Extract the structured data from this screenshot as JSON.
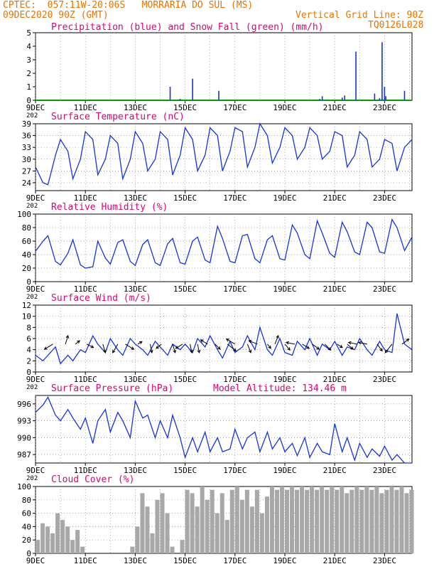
{
  "header": {
    "line1_left": "CPTEC:  057:11W-20:06S   MORRARIA DO SUL (MS)",
    "line2_left": "09DEC2020 90Z (GMT)",
    "line2_right": "Vertical Grid Line: 90Z",
    "line3_right": "TQ0126L028"
  },
  "colors": {
    "header": "#e87400",
    "title": "#e0007a",
    "series": "#1432e6",
    "snow": "#00a000",
    "cloud": "#a8a8a8",
    "arrow": "#000000"
  },
  "x_axis": {
    "tick_labels": [
      "9DEC",
      "11DEC",
      "13DEC",
      "15DEC",
      "17DEC",
      "19DEC",
      "21DEC",
      "23DEC"
    ],
    "label_days": [
      9,
      11,
      13,
      15,
      17,
      19,
      21,
      23
    ],
    "range_days": [
      9,
      24.1
    ],
    "year_fragment": "202"
  },
  "chart_data": [
    {
      "type": "bar",
      "title": "Precipitation (blue) and Snow Fall (green) (mm/h)",
      "ylim": [
        0,
        5
      ],
      "yticks": [
        "0",
        "1",
        "2",
        "3",
        "4",
        "5"
      ],
      "series": [
        {
          "name": "Precipitation",
          "x_days": [
            14.4,
            14.8,
            15.3,
            16.35,
            20.4,
            20.5,
            21.3,
            21.4,
            21.85,
            22.6,
            22.8,
            22.9,
            23.0,
            23.05,
            23.8
          ],
          "values": [
            1.0,
            0.1,
            1.6,
            0.7,
            0.1,
            0.3,
            0.2,
            0.35,
            3.6,
            0.5,
            0.15,
            4.3,
            1.0,
            0.3,
            0.7
          ]
        },
        {
          "name": "Snow Fall",
          "x_days": [
            9,
            24.1
          ],
          "values": [
            0,
            0
          ]
        }
      ]
    },
    {
      "type": "line",
      "title": "Surface Temperature (nC)",
      "ylim": [
        22,
        39
      ],
      "yticks": [
        "24",
        "27",
        "30",
        "33",
        "36",
        "39"
      ],
      "ytick_values": [
        24,
        27,
        30,
        33,
        36,
        39
      ],
      "x_days": [
        9.0,
        9.3,
        9.5,
        9.8,
        10.0,
        10.3,
        10.5,
        10.8,
        11.0,
        11.3,
        11.5,
        11.8,
        12.0,
        12.3,
        12.5,
        12.8,
        13.0,
        13.3,
        13.5,
        13.8,
        14.0,
        14.3,
        14.5,
        14.8,
        15.0,
        15.3,
        15.5,
        15.8,
        16.0,
        16.3,
        16.5,
        16.8,
        17.0,
        17.3,
        17.5,
        17.8,
        18.0,
        18.3,
        18.5,
        18.8,
        19.0,
        19.3,
        19.5,
        19.8,
        20.0,
        20.3,
        20.5,
        20.8,
        21.0,
        21.3,
        21.5,
        21.8,
        22.0,
        22.3,
        22.5,
        22.8,
        23.0,
        23.3,
        23.5,
        23.8,
        24.1
      ],
      "values": [
        28,
        24,
        23.5,
        31,
        35,
        32,
        25,
        30,
        37,
        35,
        26,
        30,
        36,
        34,
        25,
        30,
        37,
        34,
        27,
        30,
        37,
        35,
        26,
        31,
        38,
        35,
        27,
        31,
        38,
        36,
        27,
        32,
        38,
        37,
        28,
        33,
        39,
        36,
        29,
        33,
        38,
        36,
        30,
        33,
        38,
        36,
        30,
        32,
        37,
        36,
        28,
        31,
        37,
        35,
        28,
        30,
        35,
        34,
        27,
        33,
        35
      ],
      "grid": true
    },
    {
      "type": "line",
      "title": "Relative Humidity (%)",
      "ylim": [
        0,
        100
      ],
      "yticks": [
        "0",
        "20",
        "40",
        "60",
        "80",
        "100"
      ],
      "ytick_values": [
        0,
        20,
        40,
        60,
        80,
        100
      ],
      "x_days": [
        9.0,
        9.3,
        9.5,
        9.8,
        10.0,
        10.3,
        10.5,
        10.8,
        11.0,
        11.3,
        11.5,
        11.8,
        12.0,
        12.3,
        12.5,
        12.8,
        13.0,
        13.3,
        13.5,
        13.8,
        14.0,
        14.3,
        14.5,
        14.8,
        15.0,
        15.3,
        15.5,
        15.8,
        16.0,
        16.3,
        16.5,
        16.8,
        17.0,
        17.3,
        17.5,
        17.8,
        18.0,
        18.3,
        18.5,
        18.8,
        19.0,
        19.3,
        19.5,
        19.8,
        20.0,
        20.3,
        20.5,
        20.8,
        21.0,
        21.3,
        21.5,
        21.8,
        22.0,
        22.3,
        22.5,
        22.8,
        23.0,
        23.3,
        23.5,
        23.8,
        24.1
      ],
      "values": [
        45,
        60,
        68,
        30,
        25,
        42,
        62,
        25,
        20,
        22,
        60,
        35,
        26,
        58,
        62,
        30,
        24,
        55,
        62,
        28,
        24,
        56,
        64,
        28,
        26,
        60,
        66,
        32,
        28,
        82,
        64,
        30,
        28,
        68,
        70,
        34,
        28,
        62,
        68,
        34,
        32,
        84,
        72,
        40,
        34,
        90,
        72,
        42,
        36,
        88,
        74,
        44,
        40,
        88,
        80,
        44,
        42,
        92,
        80,
        46,
        66
      ],
      "grid": true
    },
    {
      "type": "line",
      "title": "Surface Wind (m/s)",
      "ylim": [
        0,
        12
      ],
      "yticks": [
        "0",
        "2",
        "4",
        "6",
        "8",
        "10",
        "12"
      ],
      "ytick_values": [
        0,
        2,
        4,
        6,
        8,
        10,
        12
      ],
      "x_days": [
        9.0,
        9.3,
        9.5,
        9.8,
        10.0,
        10.3,
        10.5,
        10.8,
        11.0,
        11.3,
        11.5,
        11.8,
        12.0,
        12.3,
        12.5,
        12.8,
        13.0,
        13.3,
        13.5,
        13.8,
        14.0,
        14.3,
        14.5,
        14.8,
        15.0,
        15.3,
        15.5,
        15.8,
        16.0,
        16.3,
        16.5,
        16.8,
        17.0,
        17.3,
        17.5,
        17.8,
        18.0,
        18.3,
        18.5,
        18.8,
        19.0,
        19.3,
        19.5,
        19.8,
        20.0,
        20.3,
        20.5,
        20.8,
        21.0,
        21.3,
        21.5,
        21.8,
        22.0,
        22.3,
        22.5,
        22.8,
        23.0,
        23.3,
        23.5,
        23.8,
        24.1
      ],
      "values": [
        3,
        2,
        3,
        4.5,
        1.5,
        3,
        2,
        4,
        3.5,
        6.5,
        5,
        3.5,
        6,
        4,
        3,
        6,
        5,
        4,
        3,
        5.5,
        4.5,
        3,
        5,
        4,
        5,
        3.5,
        6,
        4.5,
        6.5,
        4,
        2.5,
        5.5,
        3.5,
        4.5,
        6.5,
        4,
        8,
        4,
        3,
        6,
        3.5,
        3,
        5.5,
        4,
        6,
        3,
        5,
        4,
        5.5,
        3,
        4.5,
        4,
        6,
        4,
        3,
        5.5,
        4,
        3.5,
        10.5,
        5,
        4
      ],
      "grid": true,
      "arrows": {
        "x_days": [
          9.7,
          10.2,
          10.6,
          11.05,
          11.7,
          12.3,
          12.6,
          13.1,
          13.6,
          14.05,
          14.5,
          14.9,
          15.2,
          15.5,
          15.9,
          16.2,
          16.7,
          17.0,
          17.5,
          17.9,
          18.3,
          18.6,
          19.0,
          19.4,
          19.7,
          20.1,
          20.6,
          21.1,
          21.5,
          21.9,
          22.3,
          22.7,
          23.3,
          23.7
        ],
        "dx": [
          -1,
          0.3,
          0.5,
          0.8,
          0.3,
          -0.6,
          1,
          0.5,
          0.2,
          -0.6,
          0.3,
          -0.8,
          0.2,
          0.2,
          -0.8,
          0.6,
          1,
          -1,
          0.4,
          -1,
          0.4,
          0.4,
          0.6,
          -1,
          0.8,
          0.8,
          0.7,
          0.6,
          0.7,
          -1,
          -1,
          0.6,
          -0.8,
          0.8
        ],
        "dy": [
          -0.6,
          1,
          0.4,
          -0.4,
          -1,
          -1,
          -0.6,
          0.3,
          -1,
          -0.5,
          -1,
          -0.5,
          -1,
          -1,
          0.5,
          -0.6,
          -0.8,
          0.6,
          -1,
          0.4,
          -0.5,
          1,
          -0.7,
          0.2,
          -0.5,
          -0.6,
          -0.7,
          -0.4,
          -0.6,
          0.2,
          0.2,
          -0.8,
          -1,
          0.6
        ]
      }
    },
    {
      "type": "line",
      "title": "Surface Pressure (hPa)",
      "annotation": "Model Altitude: 134.46 m",
      "ylim": [
        985.5,
        997.5
      ],
      "yticks": [
        "987",
        "990",
        "993",
        "996"
      ],
      "ytick_values": [
        987,
        990,
        993,
        996
      ],
      "x_days": [
        9.0,
        9.3,
        9.5,
        9.8,
        10.0,
        10.3,
        10.5,
        10.8,
        11.0,
        11.3,
        11.5,
        11.8,
        12.0,
        12.3,
        12.5,
        12.8,
        13.0,
        13.3,
        13.5,
        13.8,
        14.0,
        14.3,
        14.5,
        14.8,
        15.0,
        15.3,
        15.5,
        15.8,
        16.0,
        16.3,
        16.5,
        16.8,
        17.0,
        17.3,
        17.5,
        17.8,
        18.0,
        18.3,
        18.5,
        18.8,
        19.0,
        19.3,
        19.5,
        19.8,
        20.0,
        20.3,
        20.5,
        20.8,
        21.0,
        21.3,
        21.5,
        21.8,
        22.0,
        22.3,
        22.5,
        22.8,
        23.0,
        23.3,
        23.5,
        23.8,
        24.1
      ],
      "values": [
        994.5,
        995.8,
        997.2,
        994,
        993,
        995,
        993.5,
        991.5,
        993.5,
        989,
        993,
        995,
        991,
        994.5,
        993,
        990,
        996.5,
        993.5,
        994,
        990,
        993,
        990,
        994,
        990,
        986.5,
        990,
        987.5,
        991,
        987.5,
        990,
        987.5,
        988,
        991.5,
        988,
        990,
        991,
        987.5,
        991,
        988,
        990,
        987.5,
        989,
        986.8,
        990,
        986.5,
        989,
        987.5,
        987,
        992.5,
        987.5,
        990,
        986,
        989,
        986.5,
        988,
        986.7,
        988.5,
        986,
        987,
        985.5,
        985.5
      ],
      "grid": true
    },
    {
      "type": "bar",
      "title": "Cloud Cover (%)",
      "ylim": [
        0,
        100
      ],
      "yticks": [
        "0",
        "20",
        "40",
        "60",
        "80",
        "100"
      ],
      "ytick_values": [
        0,
        20,
        40,
        60,
        80,
        100
      ],
      "x_days": [
        9.0,
        9.2,
        9.4,
        9.6,
        9.8,
        10.0,
        10.2,
        10.4,
        10.6,
        10.8,
        11.0,
        11.2,
        11.4,
        11.6,
        11.8,
        12.0,
        12.2,
        12.4,
        12.6,
        12.8,
        13.0,
        13.2,
        13.4,
        13.6,
        13.8,
        14.0,
        14.2,
        14.4,
        14.6,
        14.8,
        15.0,
        15.2,
        15.4,
        15.6,
        15.8,
        16.0,
        16.2,
        16.4,
        16.6,
        16.8,
        17.0,
        17.2,
        17.4,
        17.6,
        17.8,
        18.0,
        18.2,
        18.4,
        18.6,
        18.8,
        19.0,
        19.2,
        19.4,
        19.6,
        19.8,
        20.0,
        20.2,
        20.4,
        20.6,
        20.8,
        21.0,
        21.2,
        21.4,
        21.6,
        21.8,
        22.0,
        22.2,
        22.4,
        22.6,
        22.8,
        23.0,
        23.2,
        23.4,
        23.6,
        23.8,
        24.0
      ],
      "values": [
        20,
        45,
        40,
        30,
        60,
        50,
        40,
        20,
        35,
        10,
        0,
        0,
        0,
        0,
        0,
        0,
        0,
        0,
        0,
        10,
        40,
        90,
        70,
        30,
        80,
        90,
        60,
        10,
        0,
        20,
        95,
        90,
        70,
        100,
        80,
        95,
        60,
        90,
        50,
        95,
        100,
        80,
        95,
        70,
        95,
        60,
        85,
        100,
        95,
        100,
        95,
        100,
        95,
        100,
        95,
        100,
        95,
        100,
        95,
        100,
        95,
        100,
        90,
        95,
        100,
        95,
        100,
        95,
        100,
        90,
        95,
        100,
        95,
        100,
        90,
        95
      ],
      "grid": true
    }
  ]
}
